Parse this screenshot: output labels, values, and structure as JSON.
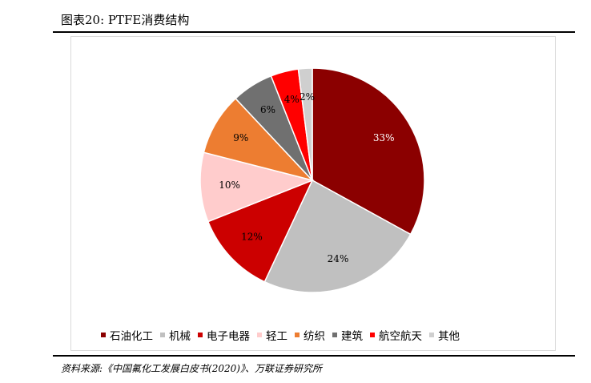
{
  "header": {
    "title": "图表20:  PTFE消费结构"
  },
  "chart_data": {
    "type": "pie",
    "categories": [
      "石油化工",
      "机械",
      "电子电器",
      "轻工",
      "纺织",
      "建筑",
      "航空航天",
      "其他"
    ],
    "values": [
      33,
      24,
      12,
      10,
      9,
      6,
      4,
      2
    ],
    "labels": [
      "33%",
      "24%",
      "12%",
      "10%",
      "9%",
      "6%",
      "4%",
      "2%"
    ],
    "colors": [
      "#8b0000",
      "#c0c0c0",
      "#cc0000",
      "#ffcccc",
      "#ed7d31",
      "#707070",
      "#ff0000",
      "#cfcfcf"
    ],
    "label_colors": [
      "#ffffff",
      "#000000",
      "#000000",
      "#000000",
      "#000000",
      "#000000",
      "#000000",
      "#000000"
    ],
    "start_angle_deg": 0,
    "direction": "clockwise",
    "legend_position": "bottom"
  },
  "footer": {
    "source": "资料来源:《中国氟化工发展白皮书(2020)》、万联证券研究所"
  }
}
